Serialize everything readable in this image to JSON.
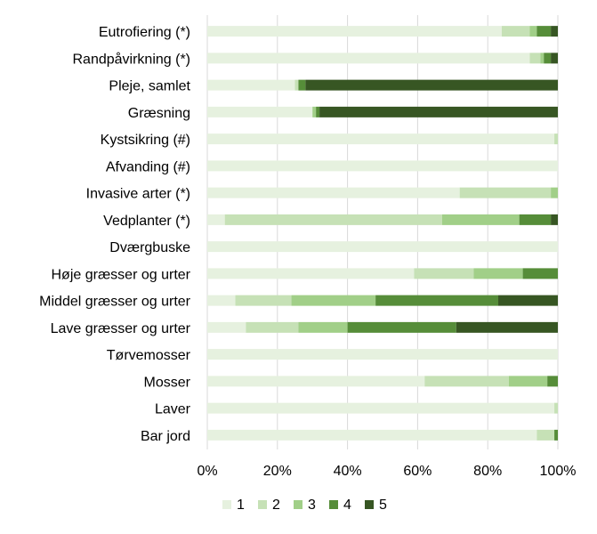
{
  "chart_data": {
    "type": "bar",
    "orientation": "horizontal",
    "stacked": "percent",
    "categories": [
      "Eutrofiering (*)",
      "Randpåvirkning (*)",
      "Pleje, samlet",
      "Græsning",
      "Kystsikring (#)",
      "Afvanding (#)",
      "Invasive arter (*)",
      "Vedplanter (*)",
      "Dværgbuske",
      "Høje græsser og urter",
      "Middel græsser og urter",
      "Lave græsser og urter",
      "Tørvemosser",
      "Mosser",
      "Laver ",
      "Bar jord"
    ],
    "series": [
      {
        "name": "1",
        "color": "#e6f1df",
        "values": [
          84,
          92,
          25,
          30,
          99,
          100,
          72,
          5,
          100,
          59,
          8,
          11,
          100,
          62,
          99,
          94
        ]
      },
      {
        "name": "2",
        "color": "#c6e1b6",
        "values": [
          8,
          3,
          1,
          0,
          1,
          0,
          26,
          62,
          0,
          17,
          16,
          15,
          0,
          24,
          1,
          5
        ]
      },
      {
        "name": "3",
        "color": "#a1cf88",
        "values": [
          2,
          1,
          0,
          1,
          0,
          0,
          2,
          22,
          0,
          14,
          24,
          14,
          0,
          11,
          0,
          0
        ]
      },
      {
        "name": "4",
        "color": "#568d39",
        "values": [
          4,
          2,
          2,
          1,
          0,
          0,
          0,
          9,
          0,
          10,
          35,
          31,
          0,
          3,
          0,
          1
        ]
      },
      {
        "name": "5",
        "color": "#375623",
        "values": [
          2,
          2,
          72,
          68,
          0,
          0,
          0,
          2,
          0,
          0,
          17,
          29,
          0,
          0,
          0,
          0
        ]
      }
    ],
    "x_ticks": [
      "0%",
      "20%",
      "40%",
      "60%",
      "80%",
      "100%"
    ],
    "xlim": [
      0,
      100
    ],
    "grid": true,
    "legend_position": "bottom"
  }
}
